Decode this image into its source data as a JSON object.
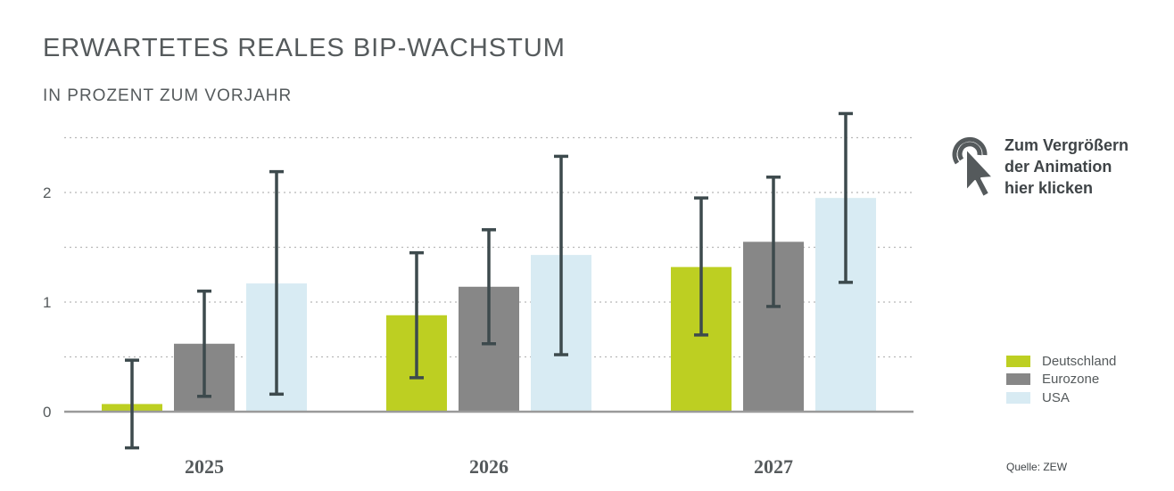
{
  "chart_data": {
    "type": "bar",
    "title": "ERWARTETES REALES BIP-WACHSTUM",
    "subtitle": "IN PROZENT ZUM VORJAHR",
    "xlabel": "",
    "ylabel": "",
    "categories": [
      "2025",
      "2026",
      "2027"
    ],
    "y_ticks": [
      "0",
      "1",
      "2"
    ],
    "ylim": [
      -0.35,
      2.75
    ],
    "grid": "dotted horizontal at every 0.5",
    "legend_position": "bottom-right",
    "series": [
      {
        "name": "Deutschland",
        "color": "#bdcf22",
        "values": [
          0.07,
          0.88,
          1.32
        ],
        "error_low": [
          -0.33,
          0.31,
          0.7
        ],
        "error_high": [
          0.47,
          1.45,
          1.95
        ]
      },
      {
        "name": "Eurozone",
        "color": "#878787",
        "values": [
          0.62,
          1.14,
          1.55
        ],
        "error_low": [
          0.14,
          0.62,
          0.96
        ],
        "error_high": [
          1.1,
          1.66,
          2.14
        ]
      },
      {
        "name": "USA",
        "color": "#d8ebf3",
        "values": [
          1.17,
          1.43,
          1.95
        ],
        "error_low": [
          0.16,
          0.52,
          1.18
        ],
        "error_high": [
          2.19,
          2.33,
          2.72
        ]
      }
    ]
  },
  "hint": {
    "lines": [
      "Zum Vergrößern",
      "der Animation",
      "hier klicken"
    ],
    "icon": "click-pointer-icon"
  },
  "source": "Quelle: ZEW",
  "colors": {
    "text": "#555a5c",
    "axis": "#9a9a9a",
    "grid": "#b8b8b8",
    "errorbar": "#3d4a4d"
  }
}
